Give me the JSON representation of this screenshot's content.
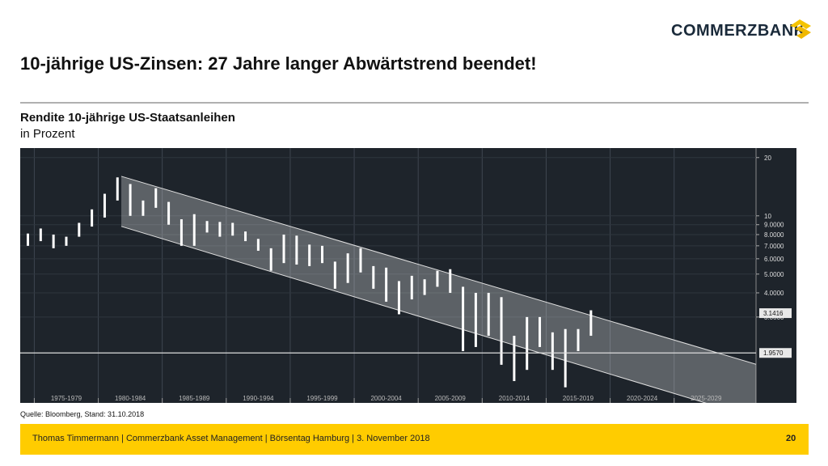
{
  "logo": "COMMERZBANK",
  "title": "10-jährige US-Zinsen: 27 Jahre langer Abwärtstrend beendet!",
  "subtitle": "Rendite 10-jährige US-Staatsanleihen",
  "unit": "in Prozent",
  "source": "Quelle: Bloomberg, Stand: 31.10.2018",
  "footer": "Thomas Timmermann | Commerzbank Asset Management | Börsentag Hamburg | 3. November 2018",
  "page_number": "20",
  "chart_data": {
    "type": "range-bar",
    "log_scale": true,
    "grid": true,
    "color": "#ffffff",
    "xlim": [
      1973.9,
      2031.4
    ],
    "ylim": [
      1.08,
      22.4
    ],
    "xticks": [
      {
        "value": 1975,
        "label": "1975-1979"
      },
      {
        "value": 1980,
        "label": "1980-1984"
      },
      {
        "value": 1985,
        "label": "1985-1989"
      },
      {
        "value": 1990,
        "label": "1990-1994"
      },
      {
        "value": 1995,
        "label": "1995-1999"
      },
      {
        "value": 2000,
        "label": "2000-2004"
      },
      {
        "value": 2005,
        "label": "2005-2009"
      },
      {
        "value": 2010,
        "label": "2010-2014"
      },
      {
        "value": 2015,
        "label": "2015-2019"
      },
      {
        "value": 2020,
        "label": "2020-2024"
      },
      {
        "value": 2025,
        "label": "2025-2029"
      }
    ],
    "yticks": [
      20,
      10,
      {
        "value": 9,
        "label": "9.0000"
      },
      {
        "value": 8,
        "label": "8.0000"
      },
      {
        "value": 7,
        "label": "7.0000"
      },
      {
        "value": 6,
        "label": "6.0000"
      },
      {
        "value": 5,
        "label": "5.0000"
      },
      {
        "value": 4,
        "label": "4.0000"
      },
      {
        "value": 3,
        "label": "3.0000"
      }
    ],
    "x": [
      1974,
      1975,
      1976,
      1977,
      1978,
      1979,
      1980,
      1981,
      1982,
      1983,
      1984,
      1985,
      1986,
      1987,
      1988,
      1989,
      1990,
      1991,
      1992,
      1993,
      1994,
      1995,
      1996,
      1997,
      1998,
      1999,
      2000,
      2001,
      2002,
      2003,
      2004,
      2005,
      2006,
      2007,
      2008,
      2009,
      2010,
      2011,
      2012,
      2013,
      2014,
      2015,
      2016,
      2017,
      2018
    ],
    "high": [
      8.1,
      8.6,
      8.0,
      7.8,
      9.2,
      10.8,
      13.0,
      15.8,
      14.6,
      12.0,
      13.9,
      11.8,
      9.6,
      10.2,
      9.4,
      9.3,
      9.2,
      8.3,
      7.6,
      6.8,
      8.0,
      7.9,
      7.1,
      7.0,
      5.8,
      6.4,
      6.8,
      5.5,
      5.4,
      4.6,
      4.9,
      4.7,
      5.2,
      5.3,
      4.3,
      4.0,
      4.0,
      3.8,
      2.4,
      3.0,
      3.0,
      2.5,
      2.6,
      2.6,
      3.25
    ],
    "low": [
      7.0,
      7.4,
      6.8,
      7.0,
      7.8,
      8.8,
      9.8,
      12.0,
      10.0,
      10.0,
      11.0,
      9.0,
      7.0,
      7.0,
      8.2,
      7.8,
      7.9,
      7.4,
      6.6,
      5.2,
      5.7,
      5.6,
      5.5,
      5.7,
      4.2,
      4.5,
      5.1,
      4.2,
      3.6,
      3.1,
      3.7,
      3.9,
      4.3,
      4.0,
      2.0,
      2.1,
      2.4,
      1.7,
      1.4,
      1.6,
      2.1,
      1.6,
      1.3,
      2.0,
      2.4
    ],
    "channel": {
      "x": [
        1981.8,
        2031.4
      ],
      "upper": [
        16.0,
        1.71
      ],
      "lower": [
        8.82,
        0.9
      ]
    },
    "reference_line": {
      "value": 1.957,
      "label": "1.9570"
    },
    "last_value": 3.1416
  }
}
